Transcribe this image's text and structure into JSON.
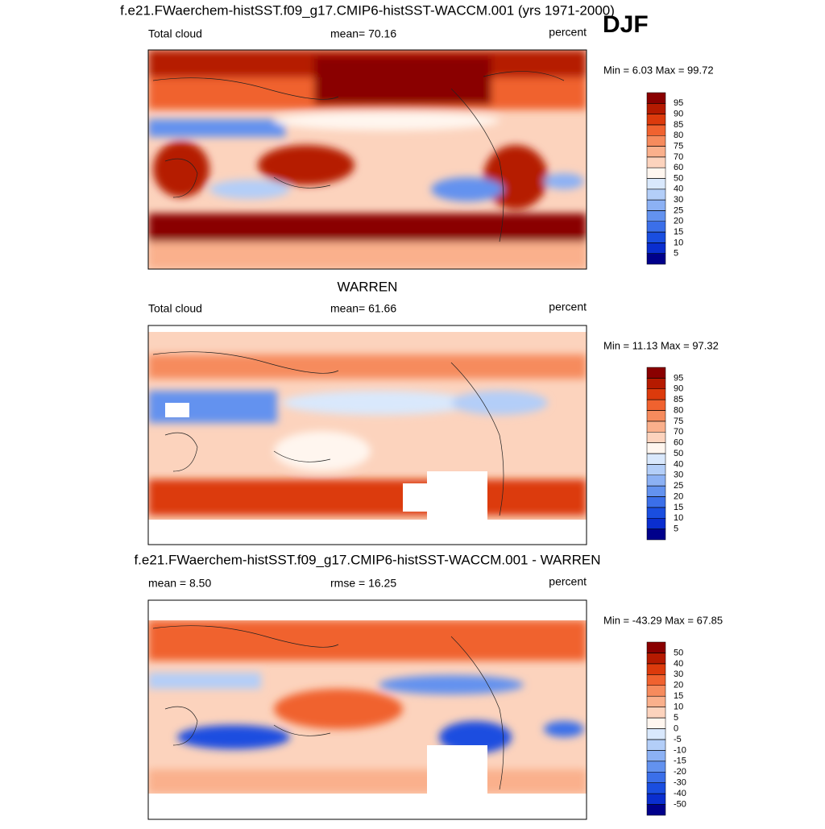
{
  "season": "DJF",
  "panels": [
    {
      "title": "f.e21.FWaerchem-histSST.f09_g17.CMIP6-histSST-WACCM.001 (yrs 1971-2000)",
      "left": "Total cloud",
      "center": "mean=  70.16",
      "right": "percent",
      "minmax": "Min =   6.03 Max =  99.72",
      "colorbar": {
        "levels": [
          5,
          10,
          15,
          20,
          25,
          30,
          40,
          50,
          60,
          70,
          75,
          80,
          85,
          90,
          95
        ],
        "colors": [
          "#00008b",
          "#0a2ecf",
          "#1a4ee0",
          "#3b6fe9",
          "#6392ef",
          "#8cb1f4",
          "#b3cef8",
          "#d9e8fc",
          "#fff6ef",
          "#fcd3bd",
          "#fab08c",
          "#f68b5d",
          "#f0622f",
          "#dc3a0c",
          "#b51a00",
          "#8a0000"
        ]
      }
    },
    {
      "title": "WARREN",
      "left": "Total cloud",
      "center": "mean=  61.66",
      "right": "percent",
      "minmax": "Min =  11.13 Max =  97.32",
      "colorbar": {
        "levels": [
          5,
          10,
          15,
          20,
          25,
          30,
          40,
          50,
          60,
          70,
          75,
          80,
          85,
          90,
          95
        ],
        "colors": [
          "#00008b",
          "#0a2ecf",
          "#1a4ee0",
          "#3b6fe9",
          "#6392ef",
          "#8cb1f4",
          "#b3cef8",
          "#d9e8fc",
          "#fff6ef",
          "#fcd3bd",
          "#fab08c",
          "#f68b5d",
          "#f0622f",
          "#dc3a0c",
          "#b51a00",
          "#8a0000"
        ]
      }
    },
    {
      "title": "f.e21.FWaerchem-histSST.f09_g17.CMIP6-histSST-WACCM.001 - WARREN",
      "left": "mean =   8.50",
      "center": "rmse =  16.25",
      "right": "percent",
      "minmax": "Min = -43.29 Max =  67.85",
      "colorbar": {
        "levels": [
          -50,
          -40,
          -30,
          -20,
          -15,
          -10,
          -5,
          0,
          5,
          10,
          15,
          20,
          30,
          40,
          50
        ],
        "colors": [
          "#00008b",
          "#0a2ecf",
          "#1a4ee0",
          "#3b6fe9",
          "#6392ef",
          "#8cb1f4",
          "#b3cef8",
          "#d9e8fc",
          "#fff6ef",
          "#fcd3bd",
          "#fab08c",
          "#f68b5d",
          "#f0622f",
          "#dc3a0c",
          "#b51a00",
          "#8a0000"
        ]
      }
    }
  ]
}
